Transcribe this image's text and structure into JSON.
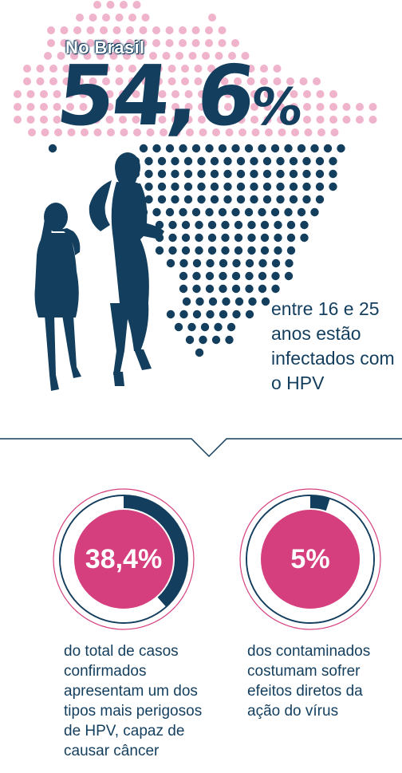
{
  "header": {
    "region_label": "No Brasil",
    "main_stat": "54,6",
    "main_stat_unit": "%",
    "main_caption": "entre 16 e 25 anos estão infectados com o HPV"
  },
  "stats": [
    {
      "value": "38,4%",
      "fraction": 0.384,
      "caption": "do total de casos confirmados apresentam um dos tipos mais perigosos de HPV, capaz de causar câncer"
    },
    {
      "value": "5%",
      "fraction": 0.05,
      "caption": "dos contaminados costumam sofrer efeitos diretos da ação do vírus"
    }
  ],
  "colors": {
    "navy": "#133e5e",
    "pink": "#d63f7e",
    "light_pink": "#f0b3cc",
    "ring_track": "#ffffff"
  }
}
